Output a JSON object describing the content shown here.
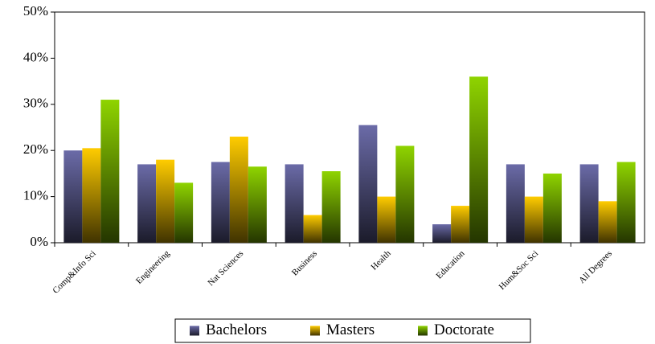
{
  "chart_data": {
    "type": "bar",
    "categories": [
      "Comp&Info Sci",
      "Engineering",
      "Nat Sciences",
      "Business",
      "Health",
      "Education",
      "Hum&Soc Sci",
      "All Degrees"
    ],
    "series": [
      {
        "name": "Bachelors",
        "color": "#6b6ba8",
        "values": [
          20,
          17,
          17.5,
          17,
          25.5,
          4,
          17,
          17
        ]
      },
      {
        "name": "Masters",
        "color": "#ffcc00",
        "values": [
          20.5,
          18,
          23,
          6,
          10,
          8,
          10,
          9
        ]
      },
      {
        "name": "Doctorate",
        "color": "#8fd400",
        "values": [
          31,
          13,
          16.5,
          15.5,
          21,
          36,
          15,
          17.5
        ]
      }
    ],
    "ylim": [
      0,
      50
    ],
    "yticks": [
      {
        "value": 0,
        "label": "0%"
      },
      {
        "value": 10,
        "label": "10%"
      },
      {
        "value": 20,
        "label": "20%"
      },
      {
        "value": 30,
        "label": "30%"
      },
      {
        "value": 40,
        "label": "40%"
      },
      {
        "value": 50,
        "label": "50%"
      }
    ],
    "legend": "bottom"
  }
}
